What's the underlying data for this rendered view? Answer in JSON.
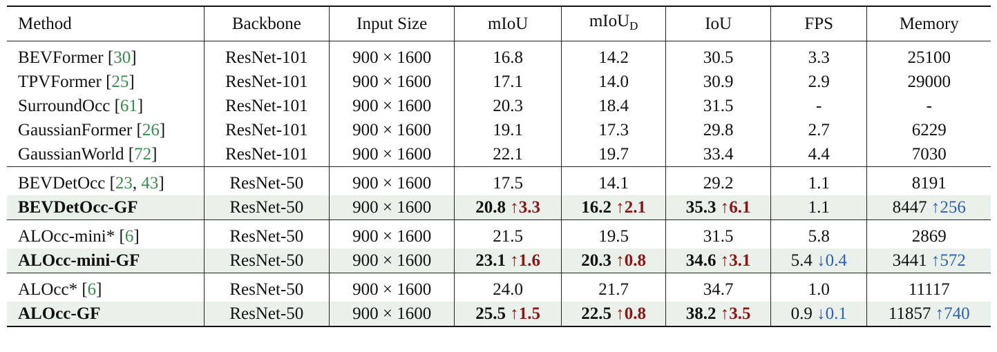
{
  "header": {
    "method": "Method",
    "backbone": "Backbone",
    "input_size": "Input Size",
    "miou": "mIoU",
    "miou_d_main": "mIoU",
    "miou_d_sub": "D",
    "iou": "IoU",
    "fps": "FPS",
    "memory": "Memory"
  },
  "groups": [
    {
      "rows": [
        {
          "method": "BEVFormer ",
          "refs": [
            "30"
          ],
          "backbone": "ResNet-101",
          "input": "900 × 1600",
          "miou": "16.8",
          "miou_d": "14.2",
          "iou": "30.5",
          "fps": "3.3",
          "memory": "25100"
        },
        {
          "method": "TPVFormer ",
          "refs": [
            "25"
          ],
          "backbone": "ResNet-101",
          "input": "900 × 1600",
          "miou": "17.1",
          "miou_d": "14.0",
          "iou": "30.9",
          "fps": "2.9",
          "memory": "29000"
        },
        {
          "method": "SurroundOcc ",
          "refs": [
            "61"
          ],
          "backbone": "ResNet-101",
          "input": "900 × 1600",
          "miou": "20.3",
          "miou_d": "18.4",
          "iou": "31.5",
          "fps": "-",
          "memory": "-"
        },
        {
          "method": "GaussianFormer ",
          "refs": [
            "26"
          ],
          "backbone": "ResNet-101",
          "input": "900 × 1600",
          "miou": "19.1",
          "miou_d": "17.3",
          "iou": "29.8",
          "fps": "2.7",
          "memory": "6229"
        },
        {
          "method": "GaussianWorld ",
          "refs": [
            "72"
          ],
          "backbone": "ResNet-101",
          "input": "900 × 1600",
          "miou": "22.1",
          "miou_d": "19.7",
          "iou": "33.4",
          "fps": "4.4",
          "memory": "7030"
        }
      ]
    },
    {
      "rows": [
        {
          "method": "BEVDetOcc ",
          "refs": [
            "23",
            "43"
          ],
          "backbone": "ResNet-50",
          "input": "900 × 1600",
          "miou": "17.5",
          "miou_d": "14.1",
          "iou": "29.2",
          "fps": "1.1",
          "memory": "8191"
        },
        {
          "method": "BEVDetOcc-GF",
          "highlight": true,
          "backbone": "ResNet-50",
          "input": "900 × 1600",
          "miou": "20.8",
          "miou_delta": "↑3.3",
          "miou_d": "16.2",
          "miou_d_delta": "↑2.1",
          "iou": "35.3",
          "iou_delta": "↑6.1",
          "fps": "1.1",
          "memory": "8447",
          "memory_delta": "↑256"
        }
      ]
    },
    {
      "rows": [
        {
          "method": "ALOcc-mini* ",
          "refs": [
            "6"
          ],
          "backbone": "ResNet-50",
          "input": "900 × 1600",
          "miou": "21.5",
          "miou_d": "19.5",
          "iou": "31.5",
          "fps": "5.8",
          "memory": "2869"
        },
        {
          "method": "ALOcc-mini-GF",
          "highlight": true,
          "backbone": "ResNet-50",
          "input": "900 × 1600",
          "miou": "23.1",
          "miou_delta": "↑1.6",
          "miou_d": "20.3",
          "miou_d_delta": "↑0.8",
          "iou": "34.6",
          "iou_delta": "↑3.1",
          "fps": "5.4",
          "fps_delta": "↓0.4",
          "memory": "3441",
          "memory_delta": "↑572"
        }
      ]
    },
    {
      "rows": [
        {
          "method": "ALOcc* ",
          "refs": [
            "6"
          ],
          "backbone": "ResNet-50",
          "input": "900 × 1600",
          "miou": "24.0",
          "miou_d": "21.7",
          "iou": "34.7",
          "fps": "1.0",
          "memory": "11117"
        },
        {
          "method": "ALOcc-GF",
          "highlight": true,
          "backbone": "ResNet-50",
          "input": "900 × 1600",
          "miou": "25.5",
          "miou_delta": "↑1.5",
          "miou_d": "22.5",
          "miou_d_delta": "↑0.8",
          "iou": "38.2",
          "iou_delta": "↑3.5",
          "fps": "0.9",
          "fps_delta": "↓0.1",
          "memory": "11857",
          "memory_delta": "↑740"
        }
      ]
    }
  ],
  "colors": {
    "up_metric": "#8c1515",
    "up_memory": "#2e5fb3",
    "down_fps": "#2e5fb3",
    "citation": "#3a8a4f",
    "highlight_bg": "#e9f1ea"
  }
}
